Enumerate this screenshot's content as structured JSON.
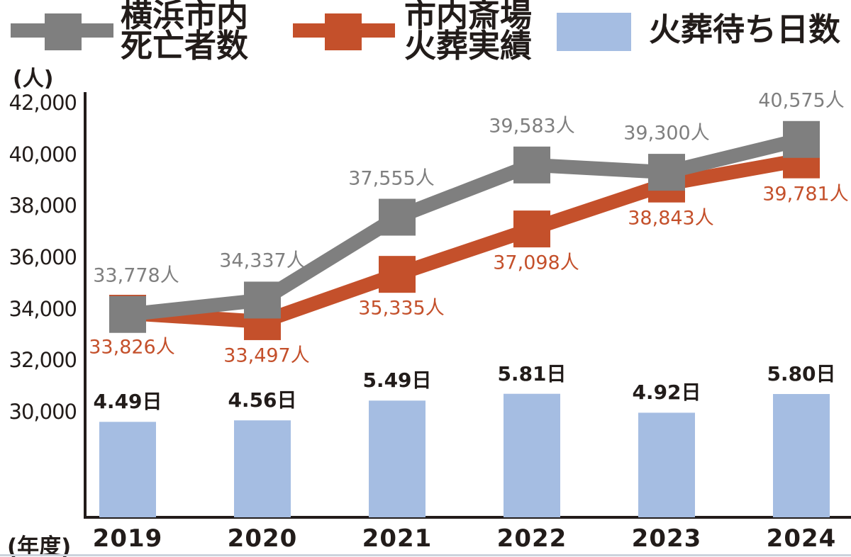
{
  "colors": {
    "ink": "#221c1a",
    "gray": "#7f7f7f",
    "red": "#c4502b",
    "blue": "#a5bde2"
  },
  "legend": {
    "items": [
      {
        "line1": "横浜市内",
        "line2": "死亡者数",
        "color": "#7f7f7f",
        "marker": "line-square"
      },
      {
        "line1": "市内斎場",
        "line2": "火葬実績",
        "color": "#c4502b",
        "marker": "line-square"
      },
      {
        "line1": "火葬待ち日数",
        "line2": "",
        "color": "#a5bde2",
        "marker": "swatch"
      }
    ]
  },
  "chart_data": {
    "type": "combo",
    "categories": [
      "2019",
      "2020",
      "2021",
      "2022",
      "2023",
      "2024"
    ],
    "x_axis_unit": "(年度)",
    "y_axis_unit": "(人)",
    "y_ticks": [
      "42,000",
      "40,000",
      "38,000",
      "36,000",
      "34,000",
      "32,000",
      "30,000"
    ],
    "y_axis_range": [
      30000,
      42000
    ],
    "grid": false,
    "legend_position": "top",
    "series": [
      {
        "name": "横浜市内死亡者数",
        "type": "line",
        "color": "#7f7f7f",
        "values": [
          33778,
          34337,
          37555,
          39583,
          39300,
          40575
        ],
        "labels": [
          "33,778人",
          "34,337人",
          "37,555人",
          "39,583人",
          "39,300人",
          "40,575人"
        ]
      },
      {
        "name": "市内斎場火葬実績",
        "type": "line",
        "color": "#c4502b",
        "values": [
          33826,
          33497,
          35335,
          37098,
          38843,
          39781
        ],
        "labels": [
          "33,826人",
          "33,497人",
          "35,335人",
          "37,098人",
          "38,843人",
          "39,781人"
        ]
      },
      {
        "name": "火葬待ち日数",
        "type": "bar",
        "unit": "日",
        "color": "#a5bde2",
        "values": [
          4.49,
          4.56,
          5.49,
          5.81,
          4.92,
          5.8
        ],
        "labels": [
          "4.49日",
          "4.56日",
          "5.49日",
          "5.81日",
          "4.92日",
          "5.80日"
        ]
      }
    ]
  }
}
